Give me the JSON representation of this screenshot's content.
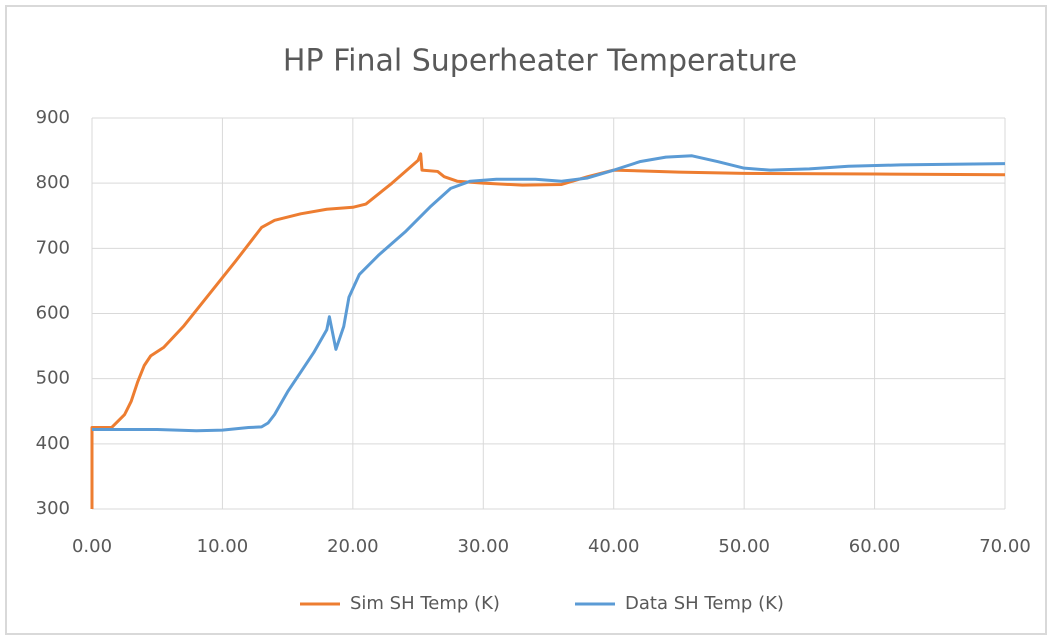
{
  "chart_data": {
    "type": "line",
    "title": "HP Final Superheater Temperature",
    "xlim": [
      0,
      70
    ],
    "ylim": [
      300,
      900
    ],
    "xticks": [
      {
        "value": 0,
        "label": "0.00"
      },
      {
        "value": 10,
        "label": "10.00"
      },
      {
        "value": 20,
        "label": "20.00"
      },
      {
        "value": 30,
        "label": "30.00"
      },
      {
        "value": 40,
        "label": "40.00"
      },
      {
        "value": 50,
        "label": "50.00"
      },
      {
        "value": 60,
        "label": "60.00"
      },
      {
        "value": 70,
        "label": "70.00"
      }
    ],
    "yticks": [
      300,
      400,
      500,
      600,
      700,
      800,
      900
    ],
    "grid": true,
    "legend": "bottom",
    "series": [
      {
        "name": "Sim SH Temp (K)",
        "color": "#ed7d31",
        "x": [
          0,
          0,
          1.5,
          2.5,
          3,
          3.5,
          4,
          4.5,
          5.5,
          7,
          9,
          11,
          13,
          14,
          16,
          18,
          20,
          21,
          23,
          25,
          25.2,
          25.3,
          26.5,
          27,
          28,
          30,
          33,
          36,
          38,
          40,
          45,
          50,
          60,
          70
        ],
        "values": [
          300,
          425,
          425,
          445,
          465,
          495,
          520,
          535,
          548,
          580,
          630,
          680,
          732,
          743,
          753,
          760,
          763,
          768,
          800,
          835,
          845,
          820,
          818,
          810,
          803,
          800,
          797,
          798,
          810,
          820,
          817,
          815,
          814,
          813
        ]
      },
      {
        "name": "Data SH Temp (K)",
        "color": "#5b9bd5",
        "x": [
          0,
          5,
          8,
          10,
          12,
          13,
          13.5,
          14,
          15,
          16,
          17,
          18,
          18.2,
          18.7,
          19.3,
          19.7,
          20.5,
          22,
          24,
          26,
          27.5,
          29,
          31,
          34,
          36,
          38,
          40,
          42,
          44,
          46,
          48,
          50,
          52,
          55,
          58,
          62,
          66,
          70
        ],
        "values": [
          422,
          422,
          420,
          421,
          425,
          426,
          432,
          445,
          480,
          510,
          540,
          575,
          595,
          545,
          580,
          625,
          660,
          690,
          725,
          765,
          792,
          803,
          806,
          806,
          803,
          808,
          820,
          833,
          840,
          842,
          833,
          823,
          820,
          822,
          826,
          828,
          829,
          830
        ]
      }
    ]
  }
}
